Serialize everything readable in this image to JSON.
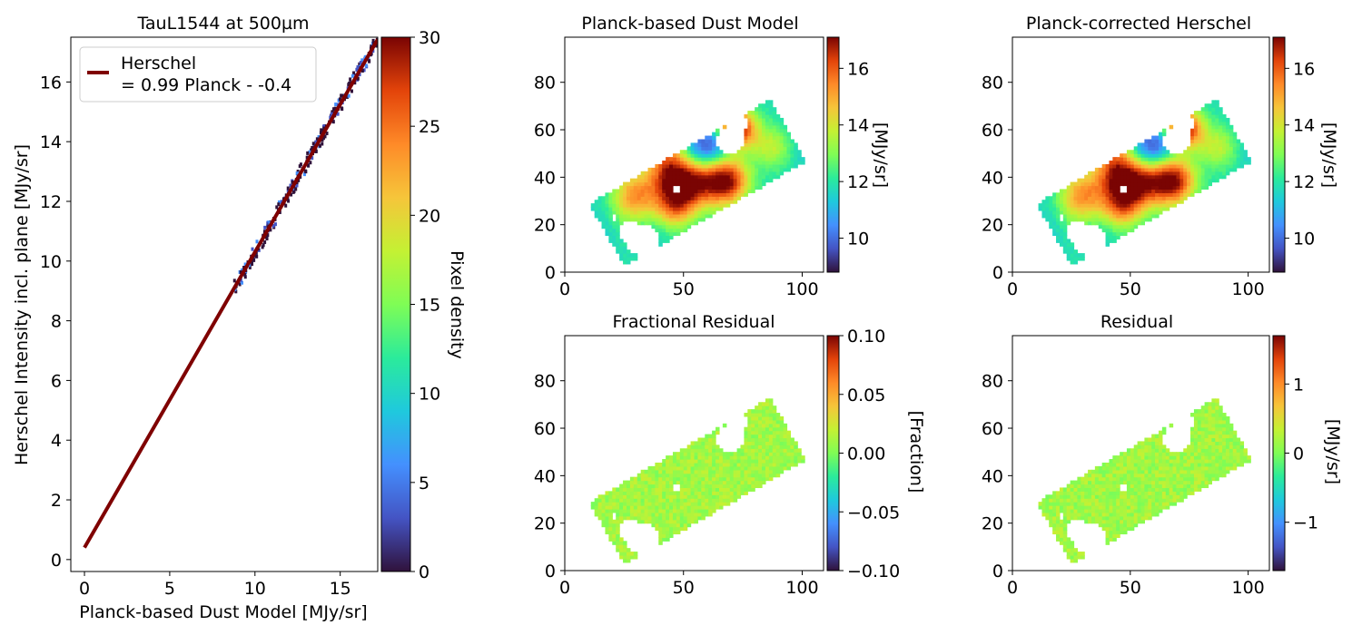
{
  "figure": {
    "legend": {
      "line1": "Herschel",
      "line2": "= 0.99 Planck - -0.4",
      "placement": "upper-left",
      "line_color": "#7f0000"
    }
  },
  "chart_data": [
    {
      "id": "scatter",
      "type": "heatmap",
      "title": "TauL1544 at 500µm",
      "xlabel": "Planck-based Dust Model [MJy/sr]",
      "ylabel": "Herschel Intensity incl. plane [MJy/sr]",
      "xlim": [
        -0.8,
        17.2
      ],
      "ylim": [
        -0.4,
        17.5
      ],
      "xticks": [
        "0",
        "5",
        "10",
        "15"
      ],
      "yticks": [
        "0",
        "2",
        "4",
        "6",
        "8",
        "10",
        "12",
        "14",
        "16"
      ],
      "density_points_range": {
        "x": [
          8.8,
          17.2
        ],
        "y": [
          9.2,
          17.3
        ]
      },
      "fit_line": {
        "slope": 0.99,
        "intercept": 0.4,
        "x_range": [
          0,
          17.2
        ],
        "label": "Herschel\n= 0.99 Planck - -0.4",
        "color": "#7f0000"
      },
      "colorbar": {
        "label": "Pixel density",
        "range": [
          0,
          30
        ],
        "ticks": [
          "0",
          "5",
          "10",
          "15",
          "20",
          "25",
          "30"
        ],
        "colormap": "turbo"
      },
      "grid": false
    },
    {
      "id": "dust",
      "type": "heatmap",
      "title": "Planck-based Dust Model",
      "xlim": [
        0,
        109
      ],
      "ylim": [
        0,
        99
      ],
      "xticks": [
        "0",
        "50",
        "100"
      ],
      "yticks": [
        "0",
        "20",
        "40",
        "60",
        "80"
      ],
      "colorbar": {
        "label": "[MJy/sr]",
        "range": [
          8.8,
          17.1
        ],
        "ticks": [
          "10",
          "12",
          "14",
          "16"
        ],
        "colormap": "turbo"
      }
    },
    {
      "id": "corr",
      "type": "heatmap",
      "title": "Planck-corrected Herschel",
      "xlim": [
        0,
        109
      ],
      "ylim": [
        0,
        99
      ],
      "xticks": [
        "0",
        "50",
        "100"
      ],
      "yticks": [
        "0",
        "20",
        "40",
        "60",
        "80"
      ],
      "colorbar": {
        "label": "[MJy/sr]",
        "range": [
          8.8,
          17.1
        ],
        "ticks": [
          "10",
          "12",
          "14",
          "16"
        ],
        "colormap": "turbo"
      }
    },
    {
      "id": "frac",
      "type": "heatmap",
      "title": "Fractional Residual",
      "xlim": [
        0,
        109
      ],
      "ylim": [
        0,
        99
      ],
      "xticks": [
        "0",
        "50",
        "100"
      ],
      "yticks": [
        "0",
        "20",
        "40",
        "60",
        "80"
      ],
      "colorbar": {
        "label": "[Fraction]",
        "range": [
          -0.1,
          0.1
        ],
        "ticks": [
          "−0.10",
          "−0.05",
          "0.00",
          "0.05",
          "0.10"
        ],
        "colormap": "turbo"
      }
    },
    {
      "id": "resid",
      "type": "heatmap",
      "title": "Residual",
      "xlim": [
        0,
        109
      ],
      "ylim": [
        0,
        99
      ],
      "xticks": [
        "0",
        "50",
        "100"
      ],
      "yticks": [
        "0",
        "20",
        "40",
        "60",
        "80"
      ],
      "colorbar": {
        "label": "[MJy/sr]",
        "range": [
          -1.7,
          1.7
        ],
        "ticks": [
          "−1",
          "0",
          "1"
        ],
        "colormap": "turbo"
      }
    }
  ]
}
